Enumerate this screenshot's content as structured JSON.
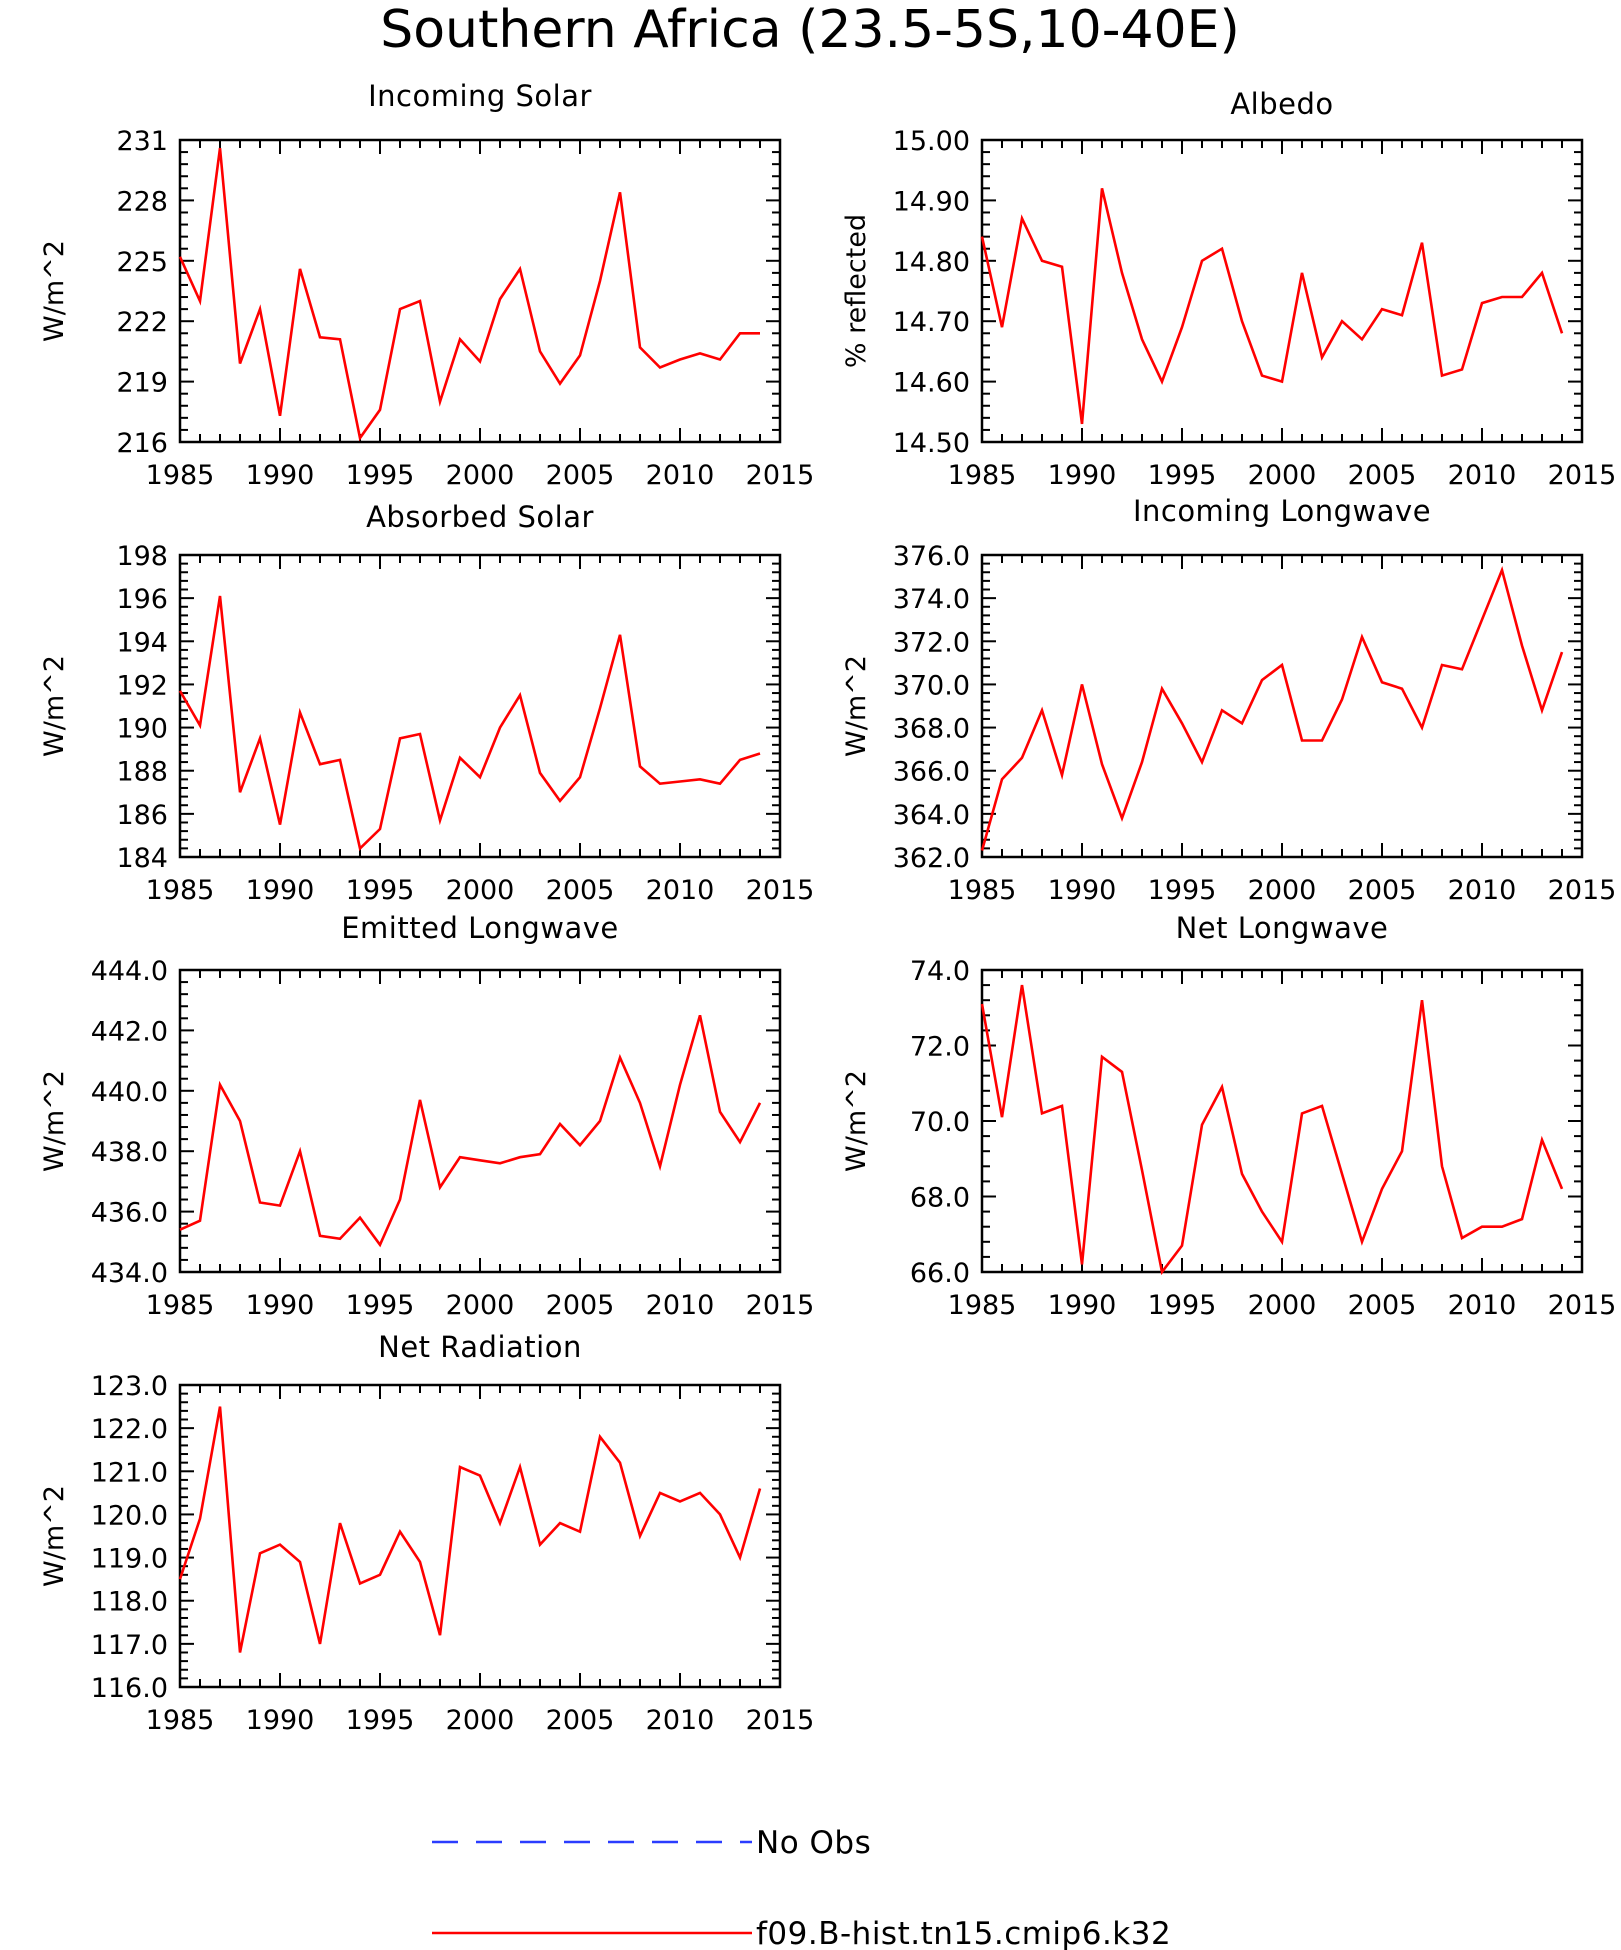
{
  "figure": {
    "title": "Southern Africa (23.5-5S,10-40E)"
  },
  "legend": {
    "entries": [
      {
        "label": "No Obs",
        "color": "#2a3cff",
        "dash": "dashed"
      },
      {
        "label": "f09.B-hist.tn15.cmip6.k32",
        "color": "#ff0000",
        "dash": "solid"
      }
    ]
  },
  "chart_data": [
    {
      "type": "line",
      "title": "Incoming Solar",
      "ylabel": "W/m^2",
      "x": [
        1985,
        1986,
        1987,
        1988,
        1989,
        1990,
        1991,
        1992,
        1993,
        1994,
        1995,
        1996,
        1997,
        1998,
        1999,
        2000,
        2001,
        2002,
        2003,
        2004,
        2005,
        2006,
        2007,
        2008,
        2009,
        2010,
        2011,
        2012,
        2013,
        2014
      ],
      "xlim": [
        1985,
        2015
      ],
      "xticks": [
        "1985",
        "1990",
        "1995",
        "2000",
        "2005",
        "2010",
        "2015"
      ],
      "ylim": [
        216,
        231
      ],
      "yticks": [
        "216",
        "219",
        "222",
        "225",
        "228",
        "231"
      ],
      "series": [
        {
          "color": "#ff0000",
          "values": [
            225.2,
            223.0,
            230.6,
            219.9,
            222.6,
            217.3,
            224.6,
            221.2,
            221.1,
            216.2,
            217.6,
            222.6,
            223.0,
            218.0,
            221.1,
            220.0,
            223.1,
            224.6,
            220.5,
            218.9,
            220.3,
            224.0,
            228.4,
            220.7,
            219.7,
            220.1,
            220.4,
            220.1,
            221.4,
            221.4
          ]
        }
      ]
    },
    {
      "type": "line",
      "title": "Albedo",
      "ylabel": "% reflected",
      "x": [
        1985,
        1986,
        1987,
        1988,
        1989,
        1990,
        1991,
        1992,
        1993,
        1994,
        1995,
        1996,
        1997,
        1998,
        1999,
        2000,
        2001,
        2002,
        2003,
        2004,
        2005,
        2006,
        2007,
        2008,
        2009,
        2010,
        2011,
        2012,
        2013,
        2014
      ],
      "xlim": [
        1985,
        2015
      ],
      "xticks": [
        "1985",
        "1990",
        "1995",
        "2000",
        "2005",
        "2010",
        "2015"
      ],
      "ylim": [
        14.5,
        15.0
      ],
      "yticks": [
        "14.50",
        "14.60",
        "14.70",
        "14.80",
        "14.90",
        "15.00"
      ],
      "series": [
        {
          "color": "#ff0000",
          "values": [
            14.84,
            14.69,
            14.87,
            14.8,
            14.79,
            14.53,
            14.92,
            14.78,
            14.67,
            14.6,
            14.69,
            14.8,
            14.82,
            14.7,
            14.61,
            14.6,
            14.78,
            14.64,
            14.7,
            14.67,
            14.72,
            14.71,
            14.83,
            14.61,
            14.62,
            14.73,
            14.74,
            14.74,
            14.78,
            14.68
          ]
        }
      ]
    },
    {
      "type": "line",
      "title": "Absorbed Solar",
      "ylabel": "W/m^2",
      "x": [
        1985,
        1986,
        1987,
        1988,
        1989,
        1990,
        1991,
        1992,
        1993,
        1994,
        1995,
        1996,
        1997,
        1998,
        1999,
        2000,
        2001,
        2002,
        2003,
        2004,
        2005,
        2006,
        2007,
        2008,
        2009,
        2010,
        2011,
        2012,
        2013,
        2014
      ],
      "xlim": [
        1985,
        2015
      ],
      "xticks": [
        "1985",
        "1990",
        "1995",
        "2000",
        "2005",
        "2010",
        "2015"
      ],
      "ylim": [
        184,
        198
      ],
      "yticks": [
        "184",
        "186",
        "188",
        "190",
        "192",
        "194",
        "196",
        "198"
      ],
      "series": [
        {
          "color": "#ff0000",
          "values": [
            191.7,
            190.1,
            196.1,
            187.0,
            189.5,
            185.5,
            190.7,
            188.3,
            188.5,
            184.4,
            185.3,
            189.5,
            189.7,
            185.7,
            188.6,
            187.7,
            190.0,
            191.5,
            187.9,
            186.6,
            187.7,
            190.9,
            194.3,
            188.2,
            187.4,
            187.5,
            187.6,
            187.4,
            188.5,
            188.8
          ]
        }
      ]
    },
    {
      "type": "line",
      "title": "Incoming Longwave",
      "ylabel": "W/m^2",
      "x": [
        1985,
        1986,
        1987,
        1988,
        1989,
        1990,
        1991,
        1992,
        1993,
        1994,
        1995,
        1996,
        1997,
        1998,
        1999,
        2000,
        2001,
        2002,
        2003,
        2004,
        2005,
        2006,
        2007,
        2008,
        2009,
        2010,
        2011,
        2012,
        2013,
        2014
      ],
      "xlim": [
        1985,
        2015
      ],
      "xticks": [
        "1985",
        "1990",
        "1995",
        "2000",
        "2005",
        "2010",
        "2015"
      ],
      "ylim": [
        362,
        376
      ],
      "yticks": [
        "362.0",
        "364.0",
        "366.0",
        "368.0",
        "370.0",
        "372.0",
        "374.0",
        "376.0"
      ],
      "series": [
        {
          "color": "#ff0000",
          "values": [
            362.3,
            365.6,
            366.6,
            368.8,
            365.8,
            370.0,
            366.3,
            363.8,
            366.4,
            369.8,
            368.2,
            366.4,
            368.8,
            368.2,
            370.2,
            370.9,
            367.4,
            367.4,
            369.3,
            372.2,
            370.1,
            369.8,
            368.0,
            370.9,
            370.7,
            373.0,
            375.3,
            371.8,
            368.8,
            371.5
          ]
        }
      ]
    },
    {
      "type": "line",
      "title": "Emitted Longwave",
      "ylabel": "W/m^2",
      "x": [
        1985,
        1986,
        1987,
        1988,
        1989,
        1990,
        1991,
        1992,
        1993,
        1994,
        1995,
        1996,
        1997,
        1998,
        1999,
        2000,
        2001,
        2002,
        2003,
        2004,
        2005,
        2006,
        2007,
        2008,
        2009,
        2010,
        2011,
        2012,
        2013,
        2014
      ],
      "xlim": [
        1985,
        2015
      ],
      "xticks": [
        "1985",
        "1990",
        "1995",
        "2000",
        "2005",
        "2010",
        "2015"
      ],
      "ylim": [
        434,
        444
      ],
      "yticks": [
        "434.0",
        "436.0",
        "438.0",
        "440.0",
        "442.0",
        "444.0"
      ],
      "series": [
        {
          "color": "#ff0000",
          "values": [
            435.4,
            435.7,
            440.2,
            439.0,
            436.3,
            436.2,
            438.0,
            435.2,
            435.1,
            435.8,
            434.9,
            436.4,
            439.7,
            436.8,
            437.8,
            437.7,
            437.6,
            437.8,
            437.9,
            438.9,
            438.2,
            439.0,
            441.1,
            439.6,
            437.5,
            440.2,
            442.5,
            439.3,
            438.3,
            439.6
          ]
        }
      ]
    },
    {
      "type": "line",
      "title": "Net Longwave",
      "ylabel": "W/m^2",
      "x": [
        1985,
        1986,
        1987,
        1988,
        1989,
        1990,
        1991,
        1992,
        1993,
        1994,
        1995,
        1996,
        1997,
        1998,
        1999,
        2000,
        2001,
        2002,
        2003,
        2004,
        2005,
        2006,
        2007,
        2008,
        2009,
        2010,
        2011,
        2012,
        2013,
        2014
      ],
      "xlim": [
        1985,
        2015
      ],
      "xticks": [
        "1985",
        "1990",
        "1995",
        "2000",
        "2005",
        "2010",
        "2015"
      ],
      "ylim": [
        66,
        74
      ],
      "yticks": [
        "66.0",
        "68.0",
        "70.0",
        "72.0",
        "74.0"
      ],
      "series": [
        {
          "color": "#ff0000",
          "values": [
            73.1,
            70.1,
            73.6,
            70.2,
            70.4,
            66.2,
            71.7,
            71.3,
            68.7,
            66.0,
            66.7,
            69.9,
            70.9,
            68.6,
            67.6,
            66.8,
            70.2,
            70.4,
            68.6,
            66.8,
            68.2,
            69.2,
            73.2,
            68.8,
            66.9,
            67.2,
            67.2,
            67.4,
            69.5,
            68.2
          ]
        }
      ]
    },
    {
      "type": "line",
      "title": "Net Radiation",
      "ylabel": "W/m^2",
      "x": [
        1985,
        1986,
        1987,
        1988,
        1989,
        1990,
        1991,
        1992,
        1993,
        1994,
        1995,
        1996,
        1997,
        1998,
        1999,
        2000,
        2001,
        2002,
        2003,
        2004,
        2005,
        2006,
        2007,
        2008,
        2009,
        2010,
        2011,
        2012,
        2013,
        2014
      ],
      "xlim": [
        1985,
        2015
      ],
      "xticks": [
        "1985",
        "1990",
        "1995",
        "2000",
        "2005",
        "2010",
        "2015"
      ],
      "ylim": [
        116,
        123
      ],
      "yticks": [
        "116.0",
        "117.0",
        "118.0",
        "119.0",
        "120.0",
        "121.0",
        "122.0",
        "123.0"
      ],
      "series": [
        {
          "color": "#ff0000",
          "values": [
            118.5,
            119.9,
            122.5,
            116.8,
            119.1,
            119.3,
            118.9,
            117.0,
            119.8,
            118.4,
            118.6,
            119.6,
            118.9,
            117.2,
            121.1,
            120.9,
            119.8,
            121.1,
            119.3,
            119.8,
            119.6,
            121.8,
            121.2,
            119.5,
            120.5,
            120.3,
            120.5,
            120.0,
            119.0,
            120.6
          ]
        }
      ]
    }
  ]
}
